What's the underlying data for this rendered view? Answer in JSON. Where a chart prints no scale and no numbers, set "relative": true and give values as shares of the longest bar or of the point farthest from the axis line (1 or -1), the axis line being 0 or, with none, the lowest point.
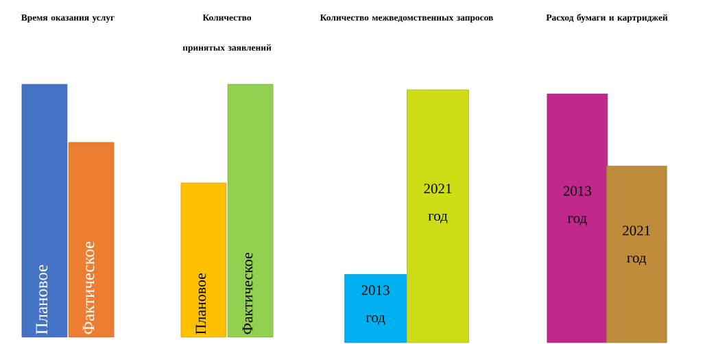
{
  "chart_data": [
    {
      "type": "bar",
      "title": "Время оказания услуг",
      "relative": true,
      "categories": [
        "Плановое",
        "Фактическое"
      ],
      "values": [
        1,
        0.77
      ],
      "colors": [
        "#4472c4",
        "#ed7d31"
      ]
    },
    {
      "type": "bar",
      "title": "Количество принятых заявлений",
      "relative": true,
      "categories": [
        "Плановое",
        "Фактическое"
      ],
      "values": [
        0.61,
        1
      ],
      "colors": [
        "#ffc000",
        "#92d050"
      ]
    },
    {
      "type": "bar",
      "title": "Количество межведомственных запросов",
      "relative": true,
      "categories": [
        "2013 год",
        "2021 год"
      ],
      "values": [
        0.27,
        1
      ],
      "colors": [
        "#00b0f0",
        "#cddc14"
      ]
    },
    {
      "type": "bar",
      "title": "Расход бумаги и картриджей",
      "relative": true,
      "categories": [
        "2013 год",
        "2021 год"
      ],
      "values": [
        1,
        0.71
      ],
      "colors": [
        "#c0288c",
        "#bf8c3c"
      ]
    }
  ]
}
